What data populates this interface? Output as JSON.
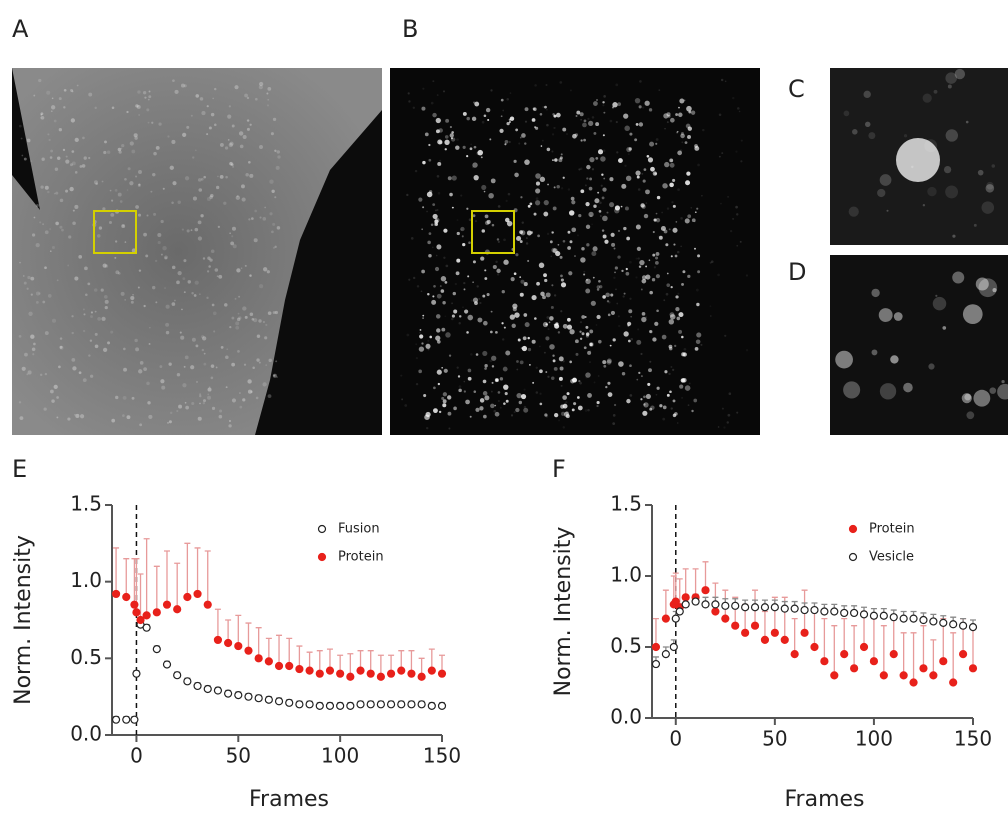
{
  "panels": {
    "labels": [
      "A",
      "B",
      "C",
      "D"
    ]
  },
  "chart_data": [
    {
      "type": "scatter",
      "panel": "E",
      "xlabel": "Frames",
      "ylabel": "Norm. Intensity",
      "xlim": [
        -12,
        150
      ],
      "ylim": [
        0,
        1.5
      ],
      "xticks": [
        0,
        50,
        100,
        150
      ],
      "yticks": [
        {
          "value": 0,
          "label": "0.0"
        },
        0.5,
        {
          "value": 1,
          "label": "1.0"
        },
        1.5
      ],
      "vline": 0,
      "legend": "upper right",
      "x": [
        -10,
        -5,
        -1,
        0,
        2,
        5,
        10,
        15,
        20,
        25,
        30,
        35,
        40,
        45,
        50,
        55,
        60,
        65,
        70,
        75,
        80,
        85,
        90,
        95,
        100,
        105,
        110,
        115,
        120,
        125,
        130,
        135,
        140,
        145,
        150
      ],
      "series": [
        {
          "name": "Fusion",
          "color": "#222222",
          "marker": "open",
          "values": [
            0.1,
            0.1,
            0.1,
            0.4,
            0.72,
            0.7,
            0.56,
            0.46,
            0.39,
            0.35,
            0.32,
            0.3,
            0.29,
            0.27,
            0.26,
            0.25,
            0.24,
            0.23,
            0.22,
            0.21,
            0.2,
            0.2,
            0.19,
            0.19,
            0.19,
            0.19,
            0.2,
            0.2,
            0.2,
            0.2,
            0.2,
            0.2,
            0.2,
            0.19,
            0.19
          ],
          "errors": [
            0.02,
            0.02,
            0.02,
            0.02,
            0.02,
            0.02,
            0.02,
            0.02,
            0.02,
            0.02,
            0.02,
            0.02,
            0.02,
            0.02,
            0.02,
            0.02,
            0.02,
            0.02,
            0.02,
            0.02,
            0.02,
            0.02,
            0.02,
            0.02,
            0.02,
            0.02,
            0.02,
            0.02,
            0.02,
            0.02,
            0.02,
            0.02,
            0.02,
            0.02,
            0.02
          ]
        },
        {
          "name": "Protein",
          "color": "#e8211b",
          "marker": "filled",
          "values": [
            0.92,
            0.9,
            0.85,
            0.8,
            0.75,
            0.78,
            0.8,
            0.85,
            0.82,
            0.9,
            0.92,
            0.85,
            0.62,
            0.6,
            0.58,
            0.55,
            0.5,
            0.48,
            0.45,
            0.45,
            0.43,
            0.42,
            0.4,
            0.42,
            0.4,
            0.38,
            0.42,
            0.4,
            0.38,
            0.4,
            0.42,
            0.4,
            0.38,
            0.42,
            0.4
          ],
          "errors": [
            0.3,
            0.25,
            0.3,
            0.35,
            0.3,
            0.5,
            0.3,
            0.35,
            0.3,
            0.35,
            0.3,
            0.35,
            0.2,
            0.15,
            0.2,
            0.18,
            0.2,
            0.15,
            0.2,
            0.18,
            0.15,
            0.12,
            0.15,
            0.14,
            0.12,
            0.15,
            0.13,
            0.15,
            0.14,
            0.12,
            0.13,
            0.15,
            0.12,
            0.14,
            0.12
          ]
        }
      ]
    },
    {
      "type": "scatter",
      "panel": "F",
      "xlabel": "Frames",
      "ylabel": "Norm. Intensity",
      "xlim": [
        -12,
        150
      ],
      "ylim": [
        0,
        1.5
      ],
      "xticks": [
        0,
        50,
        100,
        150
      ],
      "yticks": [
        {
          "value": 0,
          "label": "0.0"
        },
        0.5,
        {
          "value": 1,
          "label": "1.0"
        },
        1.5
      ],
      "vline": 0,
      "legend": "upper right",
      "x": [
        -10,
        -5,
        -1,
        0,
        2,
        5,
        10,
        15,
        20,
        25,
        30,
        35,
        40,
        45,
        50,
        55,
        60,
        65,
        70,
        75,
        80,
        85,
        90,
        95,
        100,
        105,
        110,
        115,
        120,
        125,
        130,
        135,
        140,
        145,
        150
      ],
      "series": [
        {
          "name": "Protein",
          "color": "#e8211b",
          "marker": "filled",
          "values": [
            0.5,
            0.7,
            0.8,
            0.82,
            0.78,
            0.85,
            0.85,
            0.9,
            0.75,
            0.7,
            0.65,
            0.6,
            0.65,
            0.55,
            0.6,
            0.55,
            0.45,
            0.6,
            0.5,
            0.4,
            0.3,
            0.45,
            0.35,
            0.5,
            0.4,
            0.3,
            0.45,
            0.3,
            0.25,
            0.35,
            0.3,
            0.4,
            0.25,
            0.45,
            0.35
          ],
          "errors": [
            0.2,
            0.2,
            0.2,
            0.2,
            0.2,
            0.2,
            0.2,
            0.2,
            0.2,
            0.2,
            0.2,
            0.2,
            0.25,
            0.2,
            0.25,
            0.3,
            0.25,
            0.3,
            0.25,
            0.3,
            0.35,
            0.25,
            0.3,
            0.25,
            0.3,
            0.35,
            0.25,
            0.3,
            0.35,
            0.3,
            0.25,
            0.3,
            0.35,
            0.25,
            0.3
          ]
        },
        {
          "name": "Vesicle",
          "color": "#222222",
          "marker": "open",
          "values": [
            0.38,
            0.45,
            0.5,
            0.7,
            0.75,
            0.8,
            0.82,
            0.8,
            0.8,
            0.79,
            0.79,
            0.78,
            0.78,
            0.78,
            0.78,
            0.77,
            0.77,
            0.76,
            0.76,
            0.75,
            0.75,
            0.74,
            0.74,
            0.73,
            0.72,
            0.72,
            0.71,
            0.7,
            0.7,
            0.69,
            0.68,
            0.67,
            0.66,
            0.65,
            0.64
          ],
          "errors": [
            0.05,
            0.05,
            0.05,
            0.05,
            0.05,
            0.05,
            0.05,
            0.05,
            0.05,
            0.05,
            0.05,
            0.05,
            0.05,
            0.05,
            0.05,
            0.05,
            0.05,
            0.05,
            0.05,
            0.05,
            0.05,
            0.05,
            0.05,
            0.05,
            0.05,
            0.05,
            0.05,
            0.05,
            0.05,
            0.05,
            0.05,
            0.05,
            0.05,
            0.05,
            0.05
          ]
        }
      ]
    }
  ]
}
